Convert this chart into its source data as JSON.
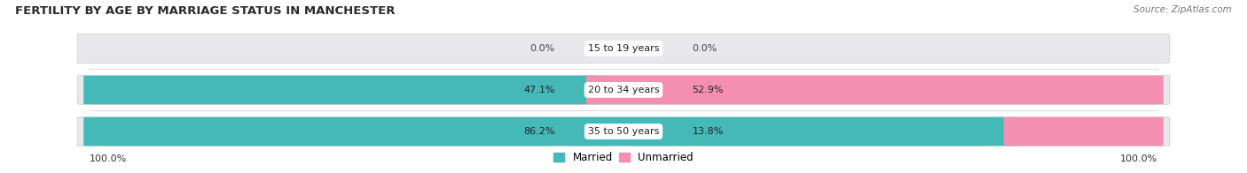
{
  "title": "FERTILITY BY AGE BY MARRIAGE STATUS IN MANCHESTER",
  "source": "Source: ZipAtlas.com",
  "categories": [
    "15 to 19 years",
    "20 to 34 years",
    "35 to 50 years"
  ],
  "married_pct": [
    0.0,
    47.1,
    86.2
  ],
  "unmarried_pct": [
    0.0,
    52.9,
    13.8
  ],
  "married_color": "#45B8B8",
  "unmarried_color": "#F48FB1",
  "bar_bg_color": "#E8E8EC",
  "fig_bg_color": "#FFFFFF",
  "title_fontsize": 9.5,
  "label_fontsize": 8.0,
  "source_fontsize": 7.5,
  "legend_fontsize": 8.5,
  "axis_label_left": "100.0%",
  "axis_label_right": "100.0%"
}
